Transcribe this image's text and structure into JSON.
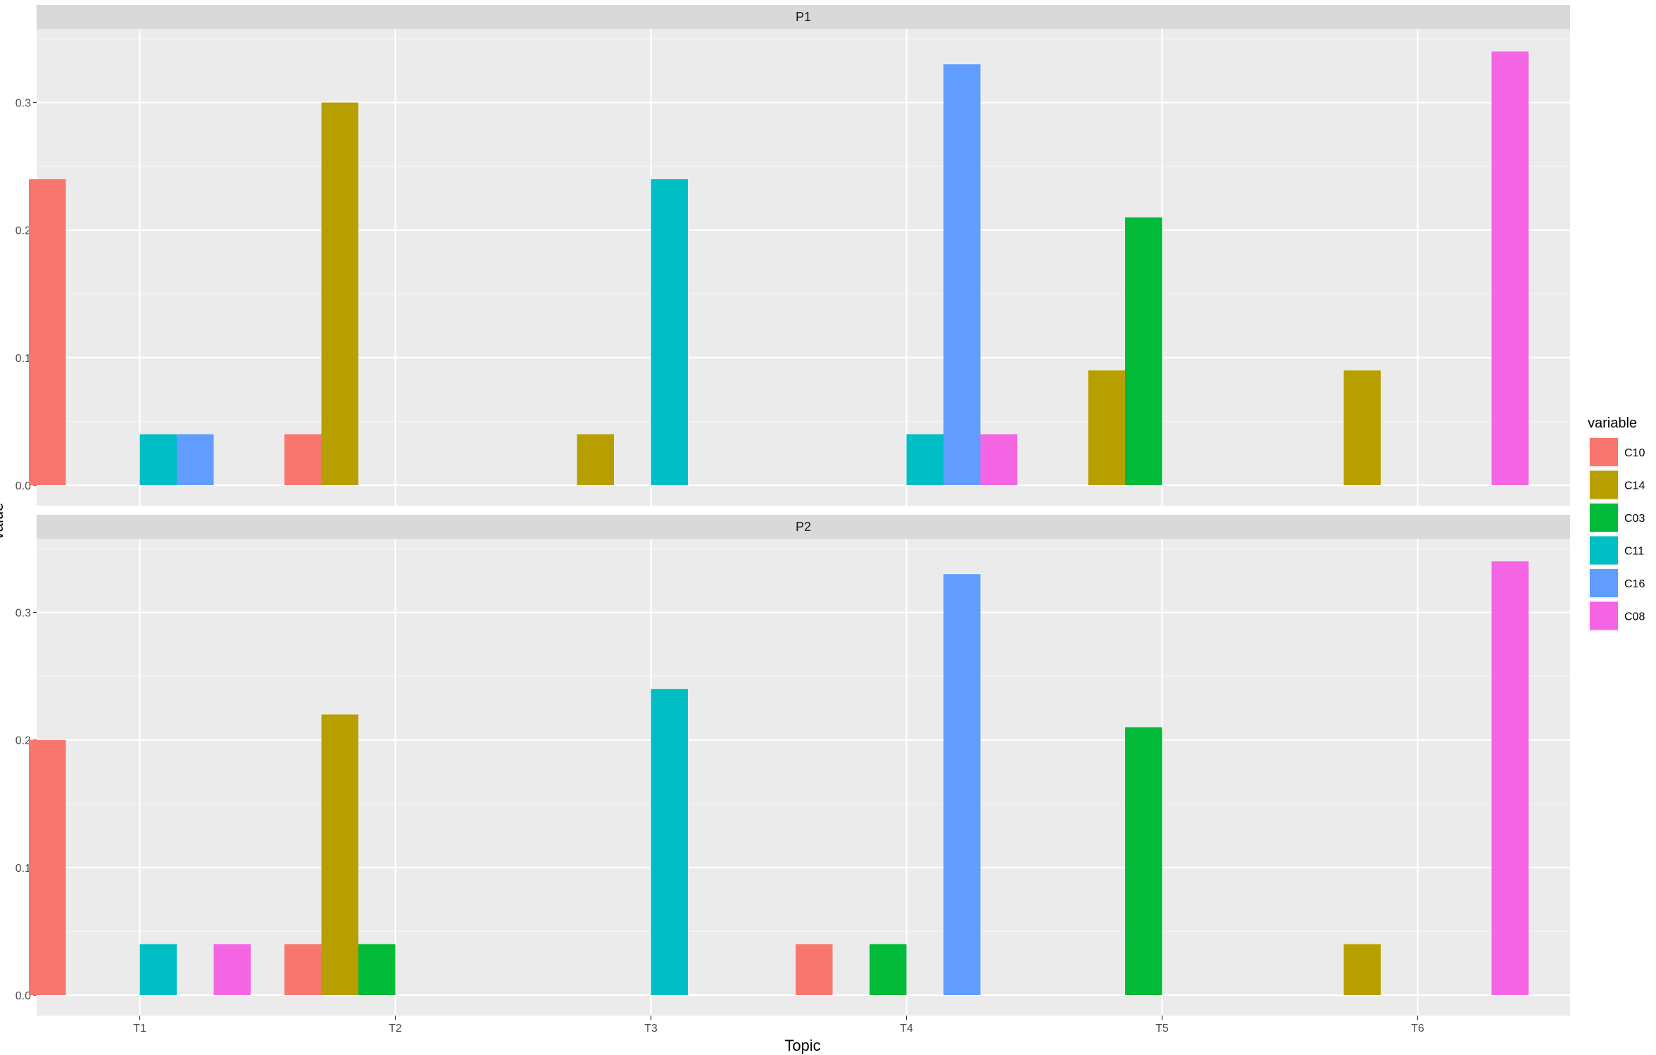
{
  "chart_data": {
    "type": "bar",
    "xlabel": "Topic",
    "ylabel": "value",
    "categories": [
      "T1",
      "T2",
      "T3",
      "T4",
      "T5",
      "T6"
    ],
    "ylim": [
      0,
      0.35
    ],
    "yticks": [
      0.0,
      0.1,
      0.2,
      0.3
    ],
    "ytick_labels": [
      "0.0",
      "0.1",
      "0.2",
      "0.3"
    ],
    "grid": true,
    "legend": {
      "title": "variable",
      "position": "right",
      "entries": [
        "C10",
        "C14",
        "C03",
        "C11",
        "C16",
        "C08"
      ]
    },
    "colors": {
      "C10": "#F8766D",
      "C14": "#B79F00",
      "C03": "#00BA38",
      "C11": "#00BFC4",
      "C16": "#619CFF",
      "C08": "#F564E3"
    },
    "panels": [
      {
        "strip": "P1",
        "series": [
          {
            "name": "C10",
            "values": [
              0.24,
              0.04,
              0,
              0,
              0,
              0
            ]
          },
          {
            "name": "C14",
            "values": [
              0,
              0.3,
              0.04,
              0,
              0.09,
              0.09
            ]
          },
          {
            "name": "C03",
            "values": [
              0,
              0,
              0,
              0,
              0.21,
              0
            ]
          },
          {
            "name": "C11",
            "values": [
              0.04,
              0,
              0.24,
              0.04,
              0,
              0
            ]
          },
          {
            "name": "C16",
            "values": [
              0.04,
              0,
              0,
              0.33,
              0,
              0
            ]
          },
          {
            "name": "C08",
            "values": [
              0,
              0,
              0,
              0.04,
              0,
              0.34
            ]
          }
        ]
      },
      {
        "strip": "P2",
        "series": [
          {
            "name": "C10",
            "values": [
              0.2,
              0.04,
              0,
              0.04,
              0,
              0
            ]
          },
          {
            "name": "C14",
            "values": [
              0,
              0.22,
              0,
              0,
              0,
              0.04
            ]
          },
          {
            "name": "C03",
            "values": [
              0,
              0.04,
              0,
              0.04,
              0.21,
              0
            ]
          },
          {
            "name": "C11",
            "values": [
              0.04,
              0,
              0.24,
              0,
              0,
              0
            ]
          },
          {
            "name": "C16",
            "values": [
              0,
              0,
              0,
              0.33,
              0,
              0
            ]
          },
          {
            "name": "C08",
            "values": [
              0.04,
              0,
              0,
              0,
              0,
              0.34
            ]
          }
        ]
      }
    ]
  }
}
